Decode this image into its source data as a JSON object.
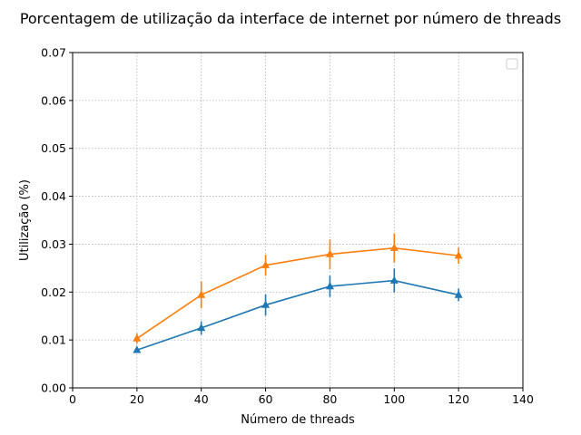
{
  "chart_data": {
    "type": "line",
    "title": "Porcentagem de utilização da interface de internet por número de threads",
    "xlabel": "Número de threads",
    "ylabel": "Utilização (%)",
    "xlim": [
      0,
      140
    ],
    "ylim": [
      0,
      0.07
    ],
    "xticks": [
      0,
      20,
      40,
      60,
      80,
      100,
      120,
      140
    ],
    "yticks": [
      0,
      0.01,
      0.02,
      0.03,
      0.04,
      0.05,
      0.06,
      0.07
    ],
    "xtick_labels": [
      "0",
      "20",
      "40",
      "60",
      "80",
      "100",
      "120",
      "140"
    ],
    "ytick_labels": [
      "0.00",
      "0.01",
      "0.02",
      "0.03",
      "0.04",
      "0.05",
      "0.06",
      "0.07"
    ],
    "grid": true,
    "legend": "top-right",
    "x": [
      20,
      40,
      60,
      80,
      100,
      120
    ],
    "series": [
      {
        "name": "",
        "color": "#1f77b4",
        "marker": "triangle",
        "values": [
          0.0079,
          0.0125,
          0.0173,
          0.0212,
          0.0224,
          0.0194
        ],
        "errors": [
          0.0006,
          0.0014,
          0.0022,
          0.0022,
          0.0025,
          0.0013
        ]
      },
      {
        "name": "",
        "color": "#ff7f0e",
        "marker": "triangle",
        "values": [
          0.0103,
          0.0194,
          0.0256,
          0.0279,
          0.0292,
          0.0276
        ],
        "errors": [
          0.0011,
          0.0028,
          0.0022,
          0.0031,
          0.003,
          0.0017
        ]
      }
    ]
  }
}
